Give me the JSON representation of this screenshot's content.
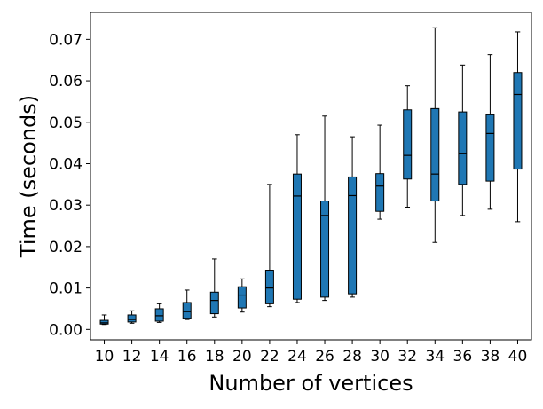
{
  "chart_data": {
    "type": "box",
    "xlabel": "Number of vertices",
    "ylabel": "Time (seconds)",
    "ylim": [
      -0.0025,
      0.0765
    ],
    "y_ticks": [
      0.0,
      0.01,
      0.02,
      0.03,
      0.04,
      0.05,
      0.06,
      0.07
    ],
    "y_tick_labels": [
      "0.00",
      "0.01",
      "0.02",
      "0.03",
      "0.04",
      "0.05",
      "0.06",
      "0.07"
    ],
    "categories": [
      "10",
      "12",
      "14",
      "16",
      "18",
      "20",
      "22",
      "24",
      "26",
      "28",
      "30",
      "32",
      "34",
      "36",
      "38",
      "40"
    ],
    "box_color": "#1f77b4",
    "line_color": "#000000",
    "grid": false,
    "boxes": [
      {
        "whislo": 0.0012,
        "q1": 0.0013,
        "med": 0.0016,
        "q3": 0.0022,
        "whishi": 0.0035
      },
      {
        "whislo": 0.0015,
        "q1": 0.0018,
        "med": 0.0024,
        "q3": 0.0035,
        "whishi": 0.0045
      },
      {
        "whislo": 0.0017,
        "q1": 0.002,
        "med": 0.0033,
        "q3": 0.005,
        "whishi": 0.0062
      },
      {
        "whislo": 0.0024,
        "q1": 0.0027,
        "med": 0.0043,
        "q3": 0.0065,
        "whishi": 0.0095
      },
      {
        "whislo": 0.003,
        "q1": 0.0038,
        "med": 0.007,
        "q3": 0.009,
        "whishi": 0.017
      },
      {
        "whislo": 0.0042,
        "q1": 0.0052,
        "med": 0.0083,
        "q3": 0.0103,
        "whishi": 0.0122
      },
      {
        "whislo": 0.0055,
        "q1": 0.0062,
        "med": 0.01,
        "q3": 0.0143,
        "whishi": 0.035
      },
      {
        "whislo": 0.0065,
        "q1": 0.0073,
        "med": 0.0322,
        "q3": 0.0375,
        "whishi": 0.047
      },
      {
        "whislo": 0.007,
        "q1": 0.0078,
        "med": 0.0275,
        "q3": 0.031,
        "whishi": 0.0515
      },
      {
        "whislo": 0.0078,
        "q1": 0.0086,
        "med": 0.0323,
        "q3": 0.0368,
        "whishi": 0.0465
      },
      {
        "whislo": 0.0266,
        "q1": 0.0285,
        "med": 0.0346,
        "q3": 0.0376,
        "whishi": 0.0493
      },
      {
        "whislo": 0.0295,
        "q1": 0.0363,
        "med": 0.042,
        "q3": 0.053,
        "whishi": 0.0588
      },
      {
        "whislo": 0.021,
        "q1": 0.031,
        "med": 0.0375,
        "q3": 0.0533,
        "whishi": 0.0728
      },
      {
        "whislo": 0.0275,
        "q1": 0.035,
        "med": 0.0424,
        "q3": 0.0525,
        "whishi": 0.0638
      },
      {
        "whislo": 0.029,
        "q1": 0.0358,
        "med": 0.0473,
        "q3": 0.0518,
        "whishi": 0.0663
      },
      {
        "whislo": 0.026,
        "q1": 0.0387,
        "med": 0.0567,
        "q3": 0.062,
        "whishi": 0.0718
      }
    ]
  }
}
